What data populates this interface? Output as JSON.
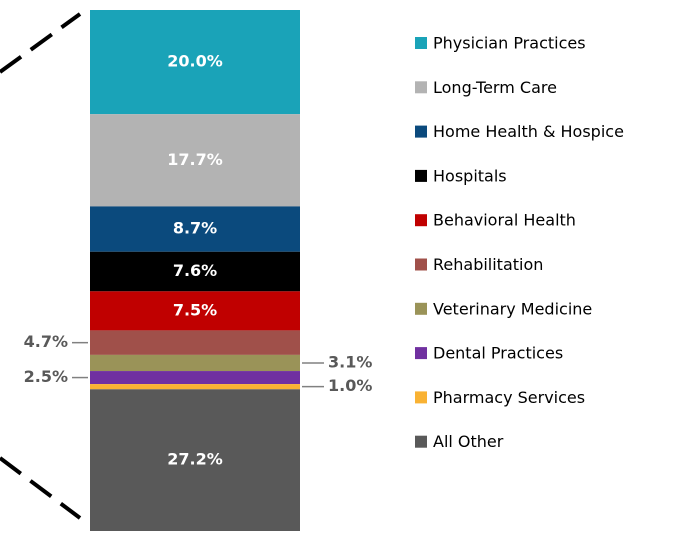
{
  "chart_data": {
    "type": "stacked_bar",
    "series": [
      {
        "name": "Physician Practices",
        "color": "#1aa3b8",
        "values": [
          20.0
        ],
        "value_labels": [
          "20.0%"
        ]
      },
      {
        "name": "Long-Term Care",
        "color": "#b3b3b3",
        "values": [
          17.7
        ],
        "value_labels": [
          "17.7%"
        ]
      },
      {
        "name": "Home Health & Hospice",
        "color": "#0b4a7d",
        "values": [
          8.7
        ],
        "value_labels": [
          "8.7%"
        ]
      },
      {
        "name": "Hospitals",
        "color": "#000000",
        "values": [
          7.6
        ],
        "value_labels": [
          "7.6%"
        ]
      },
      {
        "name": "Behavioral Health",
        "color": "#c00000",
        "values": [
          7.5
        ],
        "value_labels": [
          "7.5%"
        ]
      },
      {
        "name": "Rehabilitation",
        "color": "#a0504a",
        "values": [
          4.7
        ],
        "value_labels": [
          "4.7%"
        ]
      },
      {
        "name": "Veterinary Medicine",
        "color": "#9a9358",
        "values": [
          3.1
        ],
        "value_labels": [
          "3.1%"
        ]
      },
      {
        "name": "Dental Practices",
        "color": "#7030a0",
        "values": [
          2.5
        ],
        "value_labels": [
          "2.5%"
        ]
      },
      {
        "name": "Pharmacy Services",
        "color": "#f9b233",
        "values": [
          1.0
        ],
        "value_labels": [
          "1.0%"
        ]
      },
      {
        "name": "All Other",
        "color": "#595959",
        "values": [
          27.2
        ],
        "value_labels": [
          "27.2%"
        ]
      }
    ]
  }
}
